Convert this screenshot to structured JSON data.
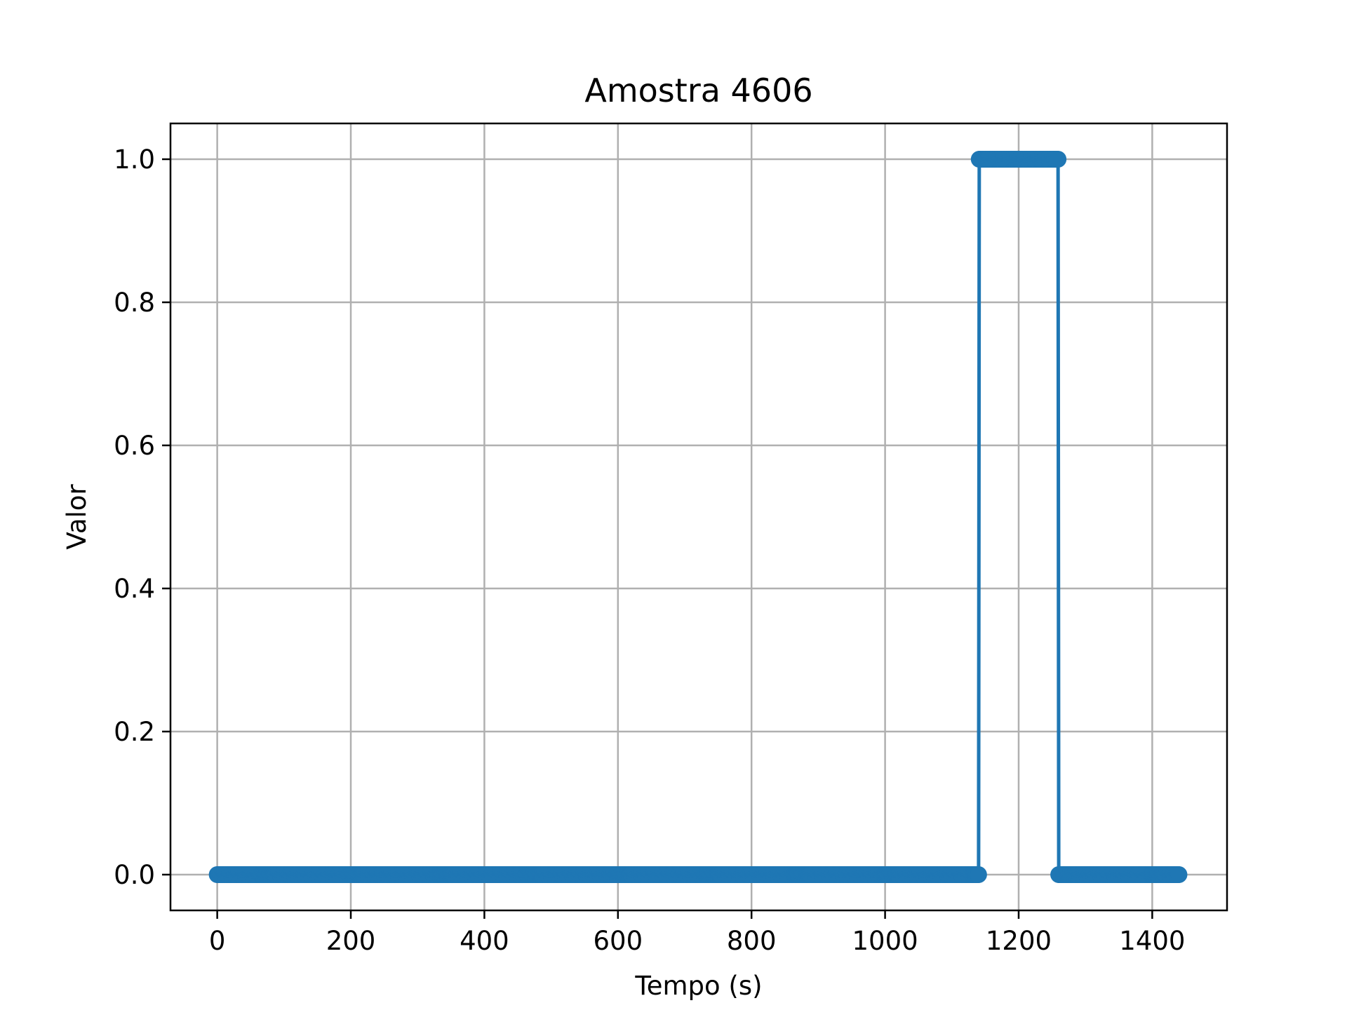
{
  "chart_data": {
    "type": "line",
    "title": "Amostra 4606",
    "xlabel": "Tempo (s)",
    "ylabel": "Valor",
    "xlim": [
      -70,
      1512
    ],
    "ylim": [
      -0.05,
      1.05
    ],
    "x_ticks": [
      0,
      200,
      400,
      600,
      800,
      1000,
      1200,
      1400
    ],
    "x_tick_labels": [
      "0",
      "200",
      "400",
      "600",
      "800",
      "1000",
      "1200",
      "1400"
    ],
    "y_ticks": [
      0.0,
      0.2,
      0.4,
      0.6,
      0.8,
      1.0
    ],
    "y_tick_labels": [
      "0.0",
      "0.2",
      "0.4",
      "0.6",
      "0.8",
      "1.0"
    ],
    "grid": true,
    "legend": "none",
    "series": [
      {
        "color": "#1f77b4",
        "x_start": 0,
        "x_end": 1440,
        "x_step": 1,
        "segments": [
          {
            "x_from": 0,
            "x_to": 1140,
            "value": 0
          },
          {
            "x_from": 1141,
            "x_to": 1259,
            "value": 1
          },
          {
            "x_from": 1260,
            "x_to": 1440,
            "value": 0
          }
        ]
      }
    ]
  }
}
